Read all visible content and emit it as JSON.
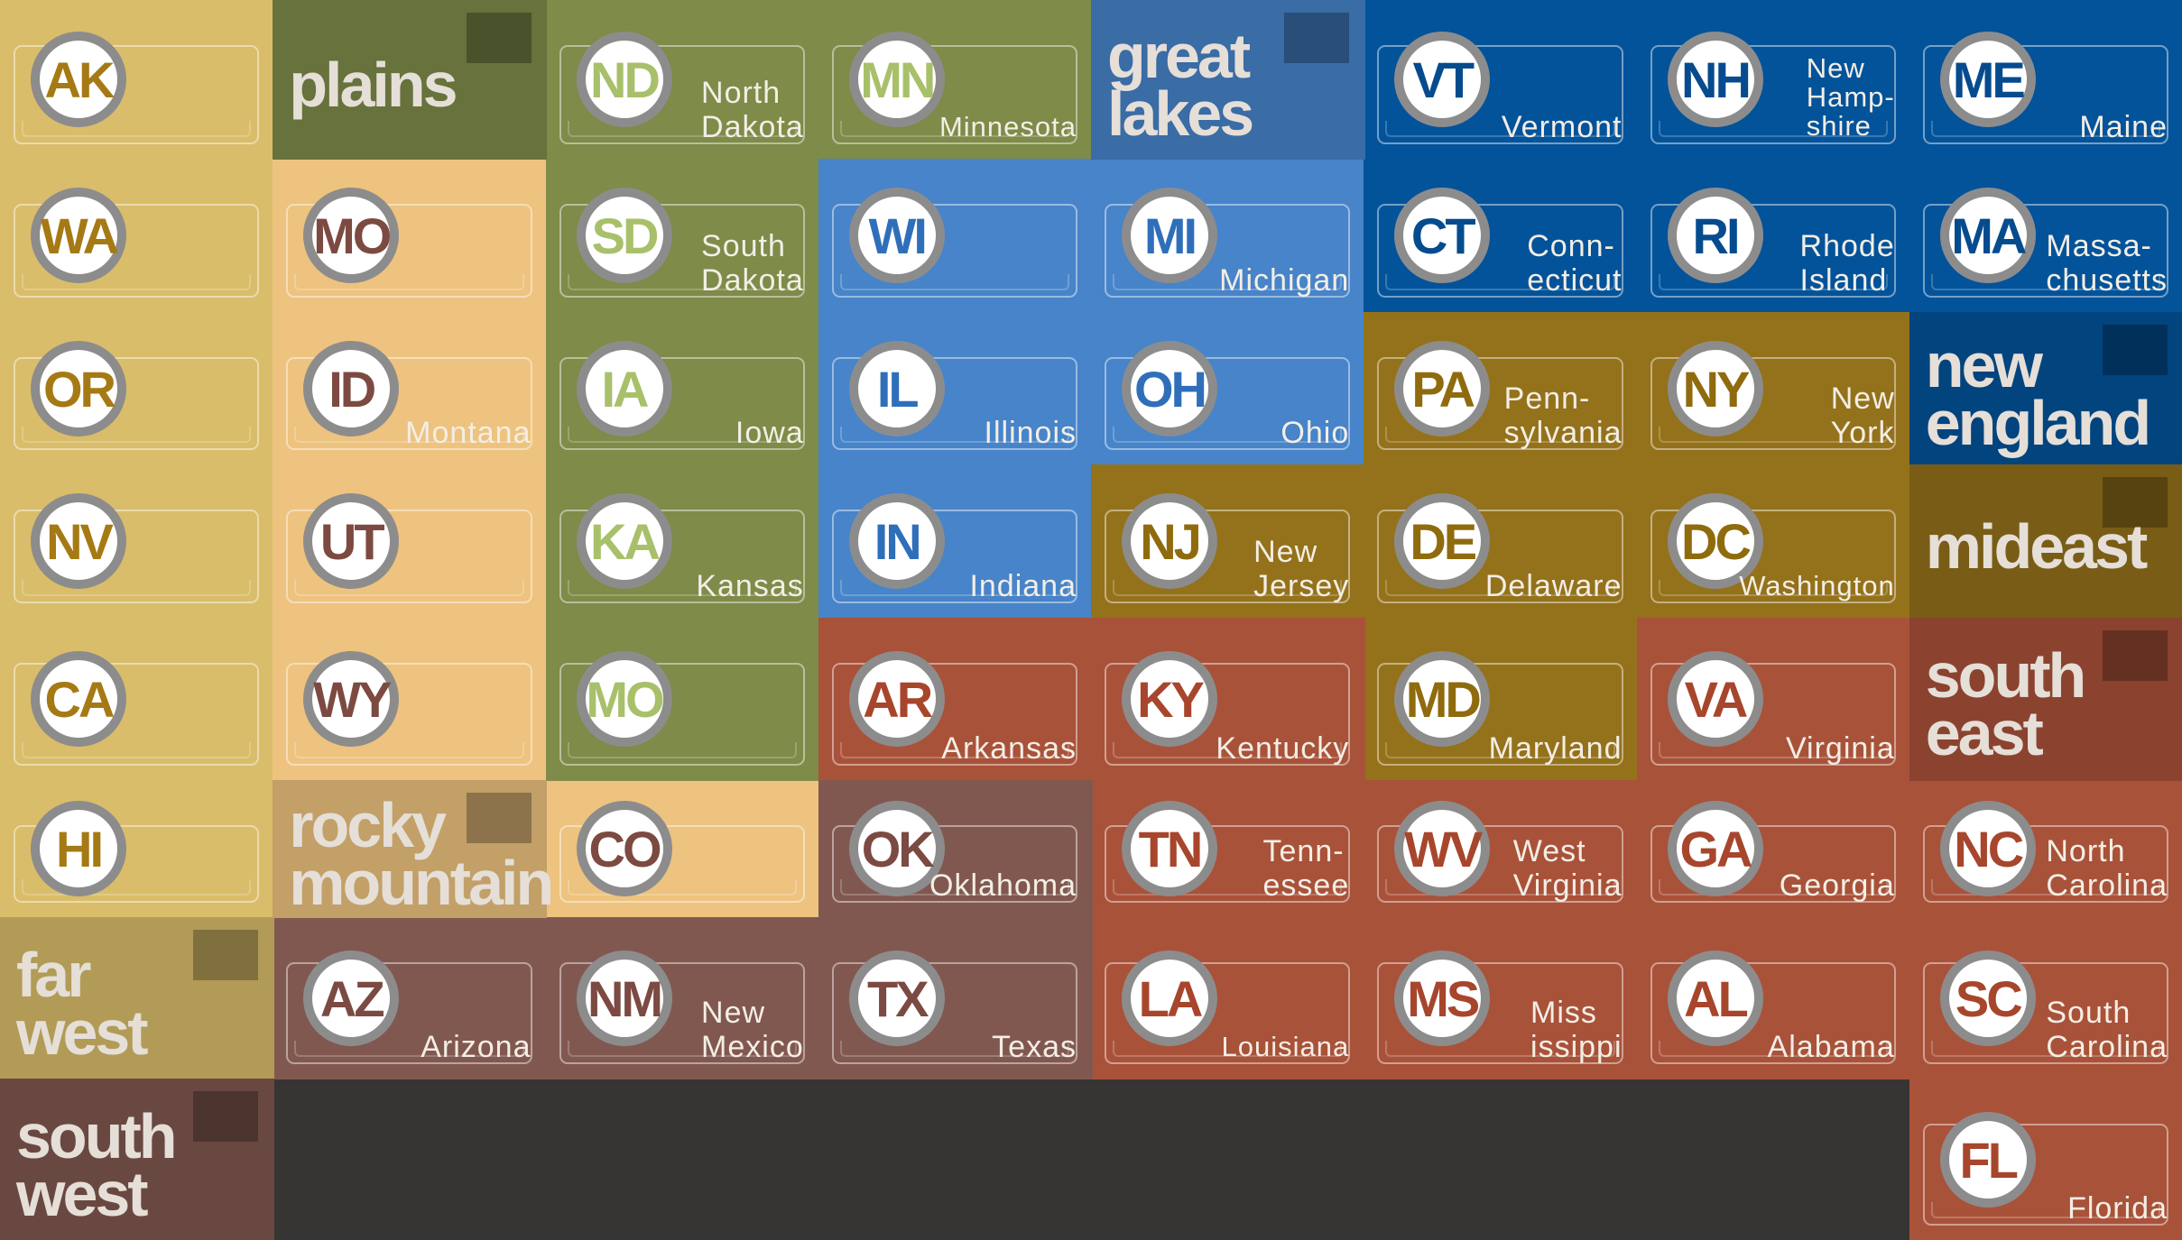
{
  "regions": [
    {
      "id": "farwest",
      "label": "far\nwest",
      "color": "#d9bd6a",
      "ab_color": "#a57a14"
    },
    {
      "id": "rocky",
      "label": "rocky\nmountain",
      "color": "#edc37f",
      "ab_color": "#7c4a41"
    },
    {
      "id": "plains",
      "label": "plains",
      "color": "#7e8b49",
      "ab_color": "#a8c06a"
    },
    {
      "id": "greatlakes",
      "label": "great\nlakes",
      "color": "#4784c9",
      "ab_color": "#2f6fba"
    },
    {
      "id": "newengland",
      "label": "new\nengland",
      "color": "#03539a",
      "ab_color": "#054b8e"
    },
    {
      "id": "mideast",
      "label": "mideast",
      "color": "#94721b",
      "ab_color": "#8f6b0e"
    },
    {
      "id": "southeast",
      "label": "south\neast",
      "color": "#a9523a",
      "ab_color": "#a7462c"
    },
    {
      "id": "southwest",
      "label": "south\nwest",
      "color": "#815850",
      "ab_color": "#7b4a42"
    }
  ],
  "states": [
    {
      "ab": "AK",
      "name": "",
      "region": "farwest",
      "col": 0,
      "row": 0
    },
    {
      "ab": "WA",
      "name": "",
      "region": "farwest",
      "col": 0,
      "row": 1
    },
    {
      "ab": "OR",
      "name": "",
      "region": "farwest",
      "col": 0,
      "row": 2
    },
    {
      "ab": "NV",
      "name": "",
      "region": "farwest",
      "col": 0,
      "row": 3
    },
    {
      "ab": "CA",
      "name": "",
      "region": "farwest",
      "col": 0,
      "row": 4
    },
    {
      "ab": "HI",
      "name": "",
      "region": "farwest",
      "col": 0,
      "row": 5
    },
    {
      "ab": "MO",
      "name": "",
      "region": "rocky",
      "col": 1,
      "row": 1
    },
    {
      "ab": "ID",
      "name": "Montana",
      "region": "rocky",
      "col": 1,
      "row": 2
    },
    {
      "ab": "UT",
      "name": "",
      "region": "rocky",
      "col": 1,
      "row": 3
    },
    {
      "ab": "WY",
      "name": "",
      "region": "rocky",
      "col": 1,
      "row": 4
    },
    {
      "ab": "CO",
      "name": "",
      "region": "rocky",
      "col": 2,
      "row": 5
    },
    {
      "ab": "ND",
      "name": "North\nDakota",
      "region": "plains",
      "col": 2,
      "row": 0
    },
    {
      "ab": "SD",
      "name": "South\nDakota",
      "region": "plains",
      "col": 2,
      "row": 1
    },
    {
      "ab": "IA",
      "name": "Iowa",
      "region": "plains",
      "col": 2,
      "row": 2
    },
    {
      "ab": "KA",
      "name": "Kansas",
      "region": "plains",
      "col": 2,
      "row": 3
    },
    {
      "ab": "MO",
      "name": "",
      "region": "plains",
      "col": 2,
      "row": 4
    },
    {
      "ab": "MN",
      "name": "Minnesota",
      "region": "plains",
      "col": 3,
      "row": 0
    },
    {
      "ab": "WI",
      "name": "",
      "region": "greatlakes",
      "col": 3,
      "row": 1
    },
    {
      "ab": "IL",
      "name": "Illinois",
      "region": "greatlakes",
      "col": 3,
      "row": 2
    },
    {
      "ab": "IN",
      "name": "Indiana",
      "region": "greatlakes",
      "col": 3,
      "row": 3
    },
    {
      "ab": "MI",
      "name": "Michigan",
      "region": "greatlakes",
      "col": 4,
      "row": 1
    },
    {
      "ab": "OH",
      "name": "Ohio",
      "region": "greatlakes",
      "col": 4,
      "row": 2
    },
    {
      "ab": "VT",
      "name": "Vermont",
      "region": "newengland",
      "col": 5,
      "row": 0
    },
    {
      "ab": "NH",
      "name": "New\nHamp-\nshire",
      "region": "newengland",
      "col": 6,
      "row": 0
    },
    {
      "ab": "ME",
      "name": "Maine",
      "region": "newengland",
      "col": 7,
      "row": 0
    },
    {
      "ab": "CT",
      "name": "Conn-\necticut",
      "region": "newengland",
      "col": 5,
      "row": 1
    },
    {
      "ab": "RI",
      "name": "Rhode\nIsland",
      "region": "newengland",
      "col": 6,
      "row": 1
    },
    {
      "ab": "MA",
      "name": "Massa-\nchusetts",
      "region": "newengland",
      "col": 7,
      "row": 1
    },
    {
      "ab": "PA",
      "name": "Penn-\nsylvania",
      "region": "mideast",
      "col": 5,
      "row": 2
    },
    {
      "ab": "NY",
      "name": "New\nYork",
      "region": "mideast",
      "col": 6,
      "row": 2
    },
    {
      "ab": "NJ",
      "name": "New\nJersey",
      "region": "mideast",
      "col": 4,
      "row": 3
    },
    {
      "ab": "DE",
      "name": "Delaware",
      "region": "mideast",
      "col": 5,
      "row": 3
    },
    {
      "ab": "DC",
      "name": "Washington",
      "region": "mideast",
      "col": 6,
      "row": 3
    },
    {
      "ab": "MD",
      "name": "Maryland",
      "region": "mideast",
      "col": 5,
      "row": 4
    },
    {
      "ab": "AR",
      "name": "Arkansas",
      "region": "southeast",
      "col": 3,
      "row": 4
    },
    {
      "ab": "KY",
      "name": "Kentucky",
      "region": "southeast",
      "col": 4,
      "row": 4
    },
    {
      "ab": "VA",
      "name": "Virginia",
      "region": "southeast",
      "col": 6,
      "row": 4
    },
    {
      "ab": "TN",
      "name": "Tenn-\nessee",
      "region": "southeast",
      "col": 4,
      "row": 5
    },
    {
      "ab": "WV",
      "name": "West\nVirginia",
      "region": "southeast",
      "col": 5,
      "row": 5
    },
    {
      "ab": "GA",
      "name": "Georgia",
      "region": "southeast",
      "col": 6,
      "row": 5
    },
    {
      "ab": "NC",
      "name": "North\nCarolina",
      "region": "southeast",
      "col": 7,
      "row": 5
    },
    {
      "ab": "LA",
      "name": "Louisiana",
      "region": "southeast",
      "col": 4,
      "row": 6
    },
    {
      "ab": "MS",
      "name": "Miss\nissippi",
      "region": "southeast",
      "col": 5,
      "row": 6
    },
    {
      "ab": "AL",
      "name": "Alabama",
      "region": "southeast",
      "col": 6,
      "row": 6
    },
    {
      "ab": "SC",
      "name": "South\nCarolina",
      "region": "southeast",
      "col": 7,
      "row": 6
    },
    {
      "ab": "FL",
      "name": "Florida",
      "region": "southeast",
      "col": 7,
      "row": 7
    },
    {
      "ab": "OK",
      "name": "Oklahoma",
      "region": "southwest",
      "col": 3,
      "row": 5
    },
    {
      "ab": "AZ",
      "name": "Arizona",
      "region": "southwest",
      "col": 1,
      "row": 6
    },
    {
      "ab": "NM",
      "name": "New\nMexico",
      "region": "southwest",
      "col": 2,
      "row": 6
    },
    {
      "ab": "TX",
      "name": "Texas",
      "region": "southwest",
      "col": 3,
      "row": 6
    }
  ],
  "labels": [
    {
      "region": "farwest",
      "col": 0,
      "row": 6
    },
    {
      "region": "rocky",
      "col": 1,
      "row": 5
    },
    {
      "region": "plains",
      "col": 1,
      "row": 0
    },
    {
      "region": "greatlakes",
      "col": 4,
      "row": 0
    },
    {
      "region": "newengland",
      "col": 7,
      "row": 2
    },
    {
      "region": "mideast",
      "col": 7,
      "row": 3
    },
    {
      "region": "southeast",
      "col": 7,
      "row": 4
    },
    {
      "region": "southwest",
      "col": 0,
      "row": 7
    }
  ]
}
